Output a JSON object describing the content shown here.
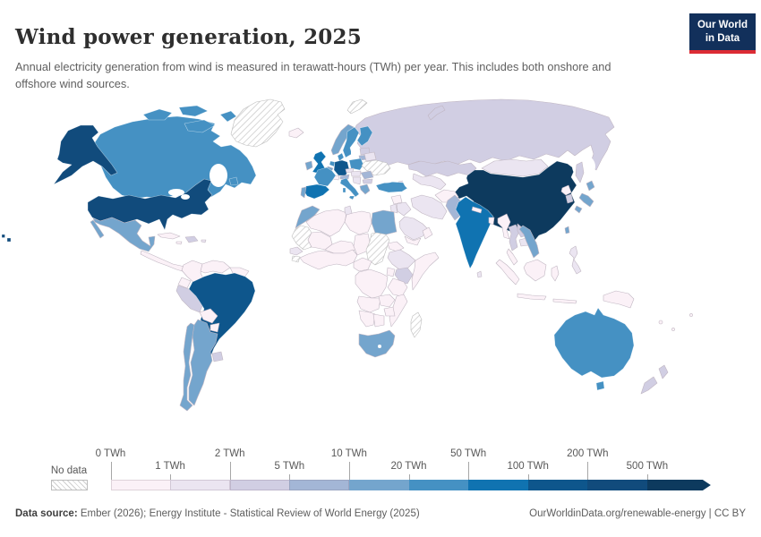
{
  "header": {
    "title": "Wind power generation, 2025",
    "subtitle": "Annual electricity generation from wind is measured in terawatt-hours (TWh) per year. This includes both onshore and offshore wind sources.",
    "logo_line1": "Our World",
    "logo_line2": "in Data"
  },
  "colors": {
    "logo_bg": "#12305b",
    "logo_red": "#dc2c34",
    "ramp": [
      "#fbf1f7",
      "#ebe5f1",
      "#d1cee3",
      "#a3b6d6",
      "#74a5cd",
      "#4591c3",
      "#1073b1",
      "#0e568c",
      "#114b7c",
      "#0d3a5e"
    ],
    "light_border": "#c0b6c2",
    "dark_border": "rgba(255,255,255,0.55)"
  },
  "legend": {
    "no_data_label": "No data",
    "ticks": [
      "0 TWh",
      "1 TWh",
      "2 TWh",
      "5 TWh",
      "10 TWh",
      "20 TWh",
      "50 TWh",
      "100 TWh",
      "200 TWh",
      "500 TWh"
    ]
  },
  "footer": {
    "source_label": "Data source:",
    "source_text": " Ember (2026); Energy Institute - Statistical Review of World Energy (2025)",
    "right_text": "OurWorldinData.org/renewable-energy | CC BY"
  },
  "map": {
    "country_bins": {
      "greenland": "no_data",
      "svalbard": "no_data",
      "ukraine": "no_data",
      "western-sahara-mauritania": "no_data",
      "guinea": "no_data",
      "sudan": "no_data",
      "madagascar": "no_data",
      "iceland": 0,
      "switzerland": 0,
      "central-america": 0,
      "cuba": 0,
      "jamaica": 0,
      "colombia": 0,
      "venezuela": 0,
      "guyanas": 0,
      "ecuador": 0,
      "bolivia": 0,
      "paraguay": 0,
      "algeria": 0,
      "libya": 0,
      "mali": 0,
      "niger": 0,
      "chad": 0,
      "west-africa": 0,
      "cameroon-car": 0,
      "drc": 0,
      "eritrea-djibouti": 0,
      "somalia": 0,
      "uganda": 0,
      "tanzania": 0,
      "angola": 0,
      "zambia": 0,
      "zimbabwe": 0,
      "mozambique": 0,
      "namibia": 0,
      "botswana": 0,
      "yemen": 0,
      "oman": 0,
      "syria": 0,
      "afghanistan": 0,
      "nepal": 0,
      "bangladesh": 0,
      "myanmar": 0,
      "north-korea": 0,
      "malay-peninsula": 0,
      "sumatra": 0,
      "borneo": 0,
      "java": 0,
      "sulawesi": 0,
      "lesser-sunda": 0,
      "new-guinea": 0,
      "fiji-1": 0,
      "fiji-2": 0,
      "fiji-3": 0,
      "mongolia": 1,
      "iran": 1,
      "iraq": 1,
      "saudi-arabia": 1,
      "jordan-israel": 1,
      "ethiopia": 1,
      "tunisia": 1,
      "senegal": 1,
      "philippines": 1,
      "sri-lanka": 1,
      "cambodia": 1,
      "belarus": 1,
      "central-asia": 1,
      "caucasus": 1,
      "czechia": 1,
      "hungary-slovakia": 1,
      "balkans": 1,
      "puerto-rico": 1,
      "russia": 2,
      "novaya-zemlya": 2,
      "sakhalin": 2,
      "kazakhstan": 2,
      "peru": 2,
      "uruguay": 2,
      "kenya": 2,
      "south-korea": 2,
      "thailand": 2,
      "laos": 2,
      "new-zealand-north": 2,
      "new-zealand-south": 2,
      "hispaniola": 2,
      "bulgaria": 2,
      "estonia-latvia": 2,
      "pakistan": 3,
      "romania": 3,
      "austria": 3,
      "lithuania": 3,
      "mexico": 4,
      "baja": 4,
      "chile": 4,
      "argentina": 4,
      "japan-hokkaido": 4,
      "japan-honshu": 4,
      "japan-kyushu": 4,
      "vietnam": 4,
      "taiwan": 4,
      "south-africa": 4,
      "egypt": 4,
      "morocco": 4,
      "norway": 4,
      "ireland": 4,
      "portugal": 4,
      "belgium": 4,
      "greece": 4,
      "canada": 5,
      "newfoundland": 5,
      "arctic-1": 5,
      "arctic-2": 5,
      "arctic-3": 5,
      "arctic-4": 5,
      "australia": 5,
      "tasmania": 5,
      "france": 5,
      "italy": 5,
      "sicily": 5,
      "sardinia": 5,
      "poland": 5,
      "sweden": 5,
      "finland": 5,
      "denmark": 5,
      "turkey": 5,
      "netherlands": 5,
      "united-kingdom": 6,
      "spain": 6,
      "india": 6,
      "germany": 7,
      "brazil": 7,
      "united-states": 8,
      "alaska": 8,
      "hawaii-1": 8,
      "hawaii-2": 8,
      "china": 9,
      "hainan": 9
    }
  },
  "chart_data": {
    "type": "heatmap",
    "subtype": "choropleth-world-map",
    "title": "Wind power generation, 2025",
    "unit": "TWh",
    "legend_thresholds": [
      0,
      1,
      2,
      5,
      10,
      20,
      50,
      100,
      200,
      500
    ],
    "bins": [
      {
        "range": "No data",
        "countries": [
          "Greenland",
          "Ukraine",
          "Western Sahara",
          "Mauritania",
          "Guinea",
          "Sudan",
          "South Sudan",
          "Madagascar",
          "Svalbard"
        ]
      },
      {
        "range": "0-1 TWh",
        "countries": [
          "Most of Africa",
          "Central America",
          "Cuba",
          "Colombia",
          "Venezuela",
          "Ecuador",
          "Bolivia",
          "Paraguay",
          "Guyanas",
          "Iceland",
          "Switzerland",
          "Syria",
          "Yemen",
          "Oman",
          "Afghanistan",
          "Nepal",
          "Bangladesh",
          "Myanmar",
          "North Korea",
          "Malaysia",
          "Indonesia",
          "Papua New Guinea",
          "Pacific islands"
        ]
      },
      {
        "range": "1-2 TWh",
        "countries": [
          "Mongolia",
          "Iran",
          "Iraq",
          "Saudi Arabia",
          "Jordan",
          "Ethiopia",
          "Tunisia",
          "Senegal",
          "Philippines",
          "Sri Lanka",
          "Cambodia",
          "Belarus",
          "Central Asia",
          "Caucasus",
          "Czechia",
          "Hungary",
          "Slovakia",
          "Balkans"
        ]
      },
      {
        "range": "2-5 TWh",
        "countries": [
          "Russia",
          "Kazakhstan",
          "Peru",
          "Uruguay",
          "Kenya",
          "South Korea",
          "Thailand",
          "Laos",
          "New Zealand",
          "Dominican Republic",
          "Bulgaria",
          "Estonia",
          "Latvia"
        ]
      },
      {
        "range": "5-10 TWh",
        "countries": [
          "Pakistan",
          "Romania",
          "Austria",
          "Lithuania"
        ]
      },
      {
        "range": "10-20 TWh",
        "countries": [
          "Mexico",
          "Chile",
          "Argentina",
          "Japan",
          "Vietnam",
          "Taiwan",
          "South Africa",
          "Egypt",
          "Morocco",
          "Norway",
          "Ireland",
          "Portugal",
          "Belgium",
          "Greece"
        ]
      },
      {
        "range": "20-50 TWh",
        "countries": [
          "Canada",
          "Australia",
          "France",
          "Italy",
          "Poland",
          "Sweden",
          "Finland",
          "Denmark",
          "Turkey",
          "Netherlands"
        ]
      },
      {
        "range": "50-100 TWh",
        "countries": [
          "United Kingdom",
          "Spain",
          "India"
        ]
      },
      {
        "range": "100-200 TWh",
        "countries": [
          "Germany",
          "Brazil"
        ]
      },
      {
        "range": "200-500 TWh",
        "countries": [
          "United States"
        ]
      },
      {
        "range": "500+ TWh",
        "countries": [
          "China"
        ]
      }
    ]
  }
}
